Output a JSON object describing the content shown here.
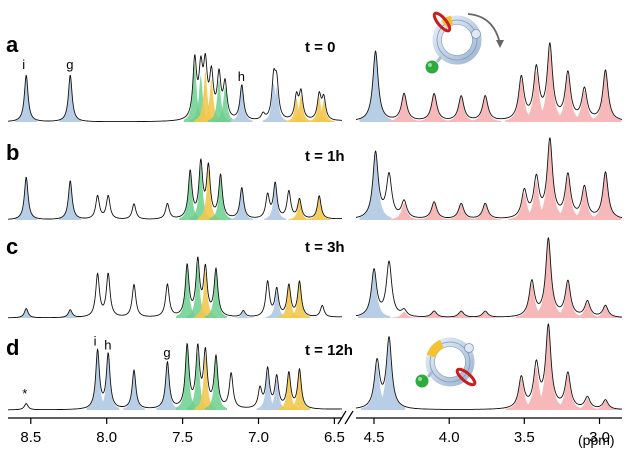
{
  "chart_data": {
    "type": "line",
    "title": "",
    "xlabel": "(ppm)",
    "ylabel": "",
    "x_axis": {
      "reversed": true,
      "broken": true,
      "segments": [
        [
          8.65,
          6.45
        ],
        [
          4.62,
          2.85
        ]
      ],
      "ticks": [
        "8.5",
        "8.0",
        "7.5",
        "7.0",
        "6.5",
        "4.5",
        "4.0",
        "3.5",
        "3.0"
      ]
    },
    "colors": {
      "blue": "#b8cde6",
      "green": "#6ccf8f",
      "yellow": "#f3c84f",
      "pink": "#f6b8b8",
      "line": "#111111"
    },
    "spectra": [
      {
        "panel": "a",
        "time_label": "t = 0",
        "peaks": [
          {
            "ppm": 8.53,
            "h": 0.6,
            "color": "blue",
            "label": "i"
          },
          {
            "ppm": 8.24,
            "h": 0.6,
            "color": "blue",
            "label": "g"
          },
          {
            "ppm": 7.42,
            "h": 0.75,
            "color": "green"
          },
          {
            "ppm": 7.38,
            "h": 0.6,
            "color": "green"
          },
          {
            "ppm": 7.35,
            "h": 0.65,
            "color": "yellow"
          },
          {
            "ppm": 7.31,
            "h": 0.55,
            "color": "yellow"
          },
          {
            "ppm": 7.26,
            "h": 0.55,
            "color": "green"
          },
          {
            "ppm": 7.22,
            "h": 0.45,
            "color": "green"
          },
          {
            "ppm": 7.11,
            "h": 0.45,
            "color": "blue",
            "label": "h"
          },
          {
            "ppm": 6.97,
            "h": 0.08,
            "color": "none"
          },
          {
            "ppm": 6.9,
            "h": 0.5,
            "color": "blue"
          },
          {
            "ppm": 6.88,
            "h": 0.45,
            "color": "blue"
          },
          {
            "ppm": 6.75,
            "h": 0.3,
            "color": "yellow"
          },
          {
            "ppm": 6.72,
            "h": 0.35,
            "color": "yellow"
          },
          {
            "ppm": 6.6,
            "h": 0.32,
            "color": "yellow"
          },
          {
            "ppm": 6.57,
            "h": 0.28,
            "color": "yellow"
          },
          {
            "ppm": 4.49,
            "h": 0.9,
            "color": "blue"
          },
          {
            "ppm": 4.3,
            "h": 0.35,
            "color": "pink"
          },
          {
            "ppm": 4.1,
            "h": 0.35,
            "color": "pink"
          },
          {
            "ppm": 3.92,
            "h": 0.32,
            "color": "pink"
          },
          {
            "ppm": 3.76,
            "h": 0.32,
            "color": "pink"
          },
          {
            "ppm": 3.52,
            "h": 0.55,
            "color": "pink"
          },
          {
            "ppm": 3.42,
            "h": 0.65,
            "color": "pink"
          },
          {
            "ppm": 3.33,
            "h": 0.95,
            "color": "pink"
          },
          {
            "ppm": 3.21,
            "h": 0.6,
            "color": "pink"
          },
          {
            "ppm": 3.1,
            "h": 0.4,
            "color": "pink"
          },
          {
            "ppm": 2.96,
            "h": 0.65,
            "color": "pink"
          }
        ]
      },
      {
        "panel": "b",
        "time_label": "t = 1h",
        "peaks": [
          {
            "ppm": 8.53,
            "h": 0.55,
            "color": "blue"
          },
          {
            "ppm": 8.24,
            "h": 0.5,
            "color": "blue"
          },
          {
            "ppm": 8.06,
            "h": 0.3,
            "color": "none"
          },
          {
            "ppm": 7.99,
            "h": 0.3,
            "color": "none"
          },
          {
            "ppm": 7.82,
            "h": 0.2,
            "color": "none"
          },
          {
            "ppm": 7.6,
            "h": 0.2,
            "color": "none"
          },
          {
            "ppm": 7.45,
            "h": 0.6,
            "color": "green"
          },
          {
            "ppm": 7.38,
            "h": 0.7,
            "color": "green"
          },
          {
            "ppm": 7.33,
            "h": 0.65,
            "color": "yellow"
          },
          {
            "ppm": 7.25,
            "h": 0.55,
            "color": "green"
          },
          {
            "ppm": 7.11,
            "h": 0.4,
            "color": "blue"
          },
          {
            "ppm": 6.94,
            "h": 0.3,
            "color": "none"
          },
          {
            "ppm": 6.89,
            "h": 0.45,
            "color": "blue"
          },
          {
            "ppm": 6.8,
            "h": 0.35,
            "color": "none"
          },
          {
            "ppm": 6.73,
            "h": 0.25,
            "color": "yellow"
          },
          {
            "ppm": 6.6,
            "h": 0.3,
            "color": "yellow"
          },
          {
            "ppm": 4.49,
            "h": 0.85,
            "color": "blue"
          },
          {
            "ppm": 4.4,
            "h": 0.55,
            "color": "none"
          },
          {
            "ppm": 4.3,
            "h": 0.22,
            "color": "pink"
          },
          {
            "ppm": 4.1,
            "h": 0.22,
            "color": "pink"
          },
          {
            "ppm": 3.92,
            "h": 0.2,
            "color": "pink"
          },
          {
            "ppm": 3.76,
            "h": 0.2,
            "color": "pink"
          },
          {
            "ppm": 3.5,
            "h": 0.35,
            "color": "pink"
          },
          {
            "ppm": 3.42,
            "h": 0.5,
            "color": "pink"
          },
          {
            "ppm": 3.33,
            "h": 1.0,
            "color": "pink"
          },
          {
            "ppm": 3.21,
            "h": 0.55,
            "color": "pink"
          },
          {
            "ppm": 3.1,
            "h": 0.4,
            "color": "pink"
          },
          {
            "ppm": 2.96,
            "h": 0.6,
            "color": "pink"
          }
        ]
      },
      {
        "panel": "c",
        "time_label": "t = 3h",
        "peaks": [
          {
            "ppm": 8.53,
            "h": 0.12,
            "color": "blue"
          },
          {
            "ppm": 8.24,
            "h": 0.1,
            "color": "blue"
          },
          {
            "ppm": 8.06,
            "h": 0.55,
            "color": "none"
          },
          {
            "ppm": 7.99,
            "h": 0.55,
            "color": "none"
          },
          {
            "ppm": 7.82,
            "h": 0.42,
            "color": "none"
          },
          {
            "ppm": 7.6,
            "h": 0.42,
            "color": "none"
          },
          {
            "ppm": 7.47,
            "h": 0.65,
            "color": "green"
          },
          {
            "ppm": 7.4,
            "h": 0.7,
            "color": "green"
          },
          {
            "ppm": 7.35,
            "h": 0.6,
            "color": "yellow"
          },
          {
            "ppm": 7.28,
            "h": 0.6,
            "color": "green"
          },
          {
            "ppm": 7.1,
            "h": 0.08,
            "color": "blue"
          },
          {
            "ppm": 6.94,
            "h": 0.45,
            "color": "none"
          },
          {
            "ppm": 6.88,
            "h": 0.35,
            "color": "blue"
          },
          {
            "ppm": 6.8,
            "h": 0.4,
            "color": "yellow"
          },
          {
            "ppm": 6.73,
            "h": 0.45,
            "color": "yellow"
          },
          {
            "ppm": 6.58,
            "h": 0.15,
            "color": "none"
          },
          {
            "ppm": 4.5,
            "h": 0.6,
            "color": "blue"
          },
          {
            "ppm": 4.4,
            "h": 0.7,
            "color": "none"
          },
          {
            "ppm": 4.3,
            "h": 0.08,
            "color": "pink"
          },
          {
            "ppm": 4.1,
            "h": 0.08,
            "color": "pink"
          },
          {
            "ppm": 3.92,
            "h": 0.08,
            "color": "pink"
          },
          {
            "ppm": 3.76,
            "h": 0.08,
            "color": "pink"
          },
          {
            "ppm": 3.45,
            "h": 0.45,
            "color": "pink"
          },
          {
            "ppm": 3.34,
            "h": 1.0,
            "color": "pink"
          },
          {
            "ppm": 3.21,
            "h": 0.45,
            "color": "pink"
          },
          {
            "ppm": 3.08,
            "h": 0.2,
            "color": "pink"
          },
          {
            "ppm": 2.96,
            "h": 0.15,
            "color": "pink"
          }
        ]
      },
      {
        "panel": "d",
        "time_label": "t = 12h",
        "peaks": [
          {
            "ppm": 8.53,
            "h": 0.08,
            "color": "none",
            "label": "*"
          },
          {
            "ppm": 8.06,
            "h": 0.75,
            "color": "blue",
            "label": "i"
          },
          {
            "ppm": 7.99,
            "h": 0.7,
            "color": "blue",
            "label": "h"
          },
          {
            "ppm": 7.82,
            "h": 0.5,
            "color": "blue"
          },
          {
            "ppm": 7.6,
            "h": 0.6,
            "color": "blue",
            "label": "g"
          },
          {
            "ppm": 7.47,
            "h": 0.8,
            "color": "green"
          },
          {
            "ppm": 7.4,
            "h": 0.75,
            "color": "green"
          },
          {
            "ppm": 7.35,
            "h": 0.7,
            "color": "yellow"
          },
          {
            "ppm": 7.28,
            "h": 0.65,
            "color": "green"
          },
          {
            "ppm": 7.18,
            "h": 0.45,
            "color": "none"
          },
          {
            "ppm": 6.99,
            "h": 0.25,
            "color": "none"
          },
          {
            "ppm": 6.94,
            "h": 0.5,
            "color": "blue"
          },
          {
            "ppm": 6.88,
            "h": 0.4,
            "color": "blue"
          },
          {
            "ppm": 6.8,
            "h": 0.45,
            "color": "yellow"
          },
          {
            "ppm": 6.73,
            "h": 0.5,
            "color": "yellow"
          },
          {
            "ppm": 4.48,
            "h": 0.6,
            "color": "blue"
          },
          {
            "ppm": 4.4,
            "h": 0.9,
            "color": "blue"
          },
          {
            "ppm": 3.52,
            "h": 0.4,
            "color": "pink"
          },
          {
            "ppm": 3.42,
            "h": 0.55,
            "color": "pink"
          },
          {
            "ppm": 3.34,
            "h": 1.05,
            "color": "pink"
          },
          {
            "ppm": 3.21,
            "h": 0.45,
            "color": "pink"
          },
          {
            "ppm": 3.08,
            "h": 0.15,
            "color": "pink"
          },
          {
            "ppm": 2.96,
            "h": 0.12,
            "color": "pink"
          }
        ]
      }
    ]
  }
}
